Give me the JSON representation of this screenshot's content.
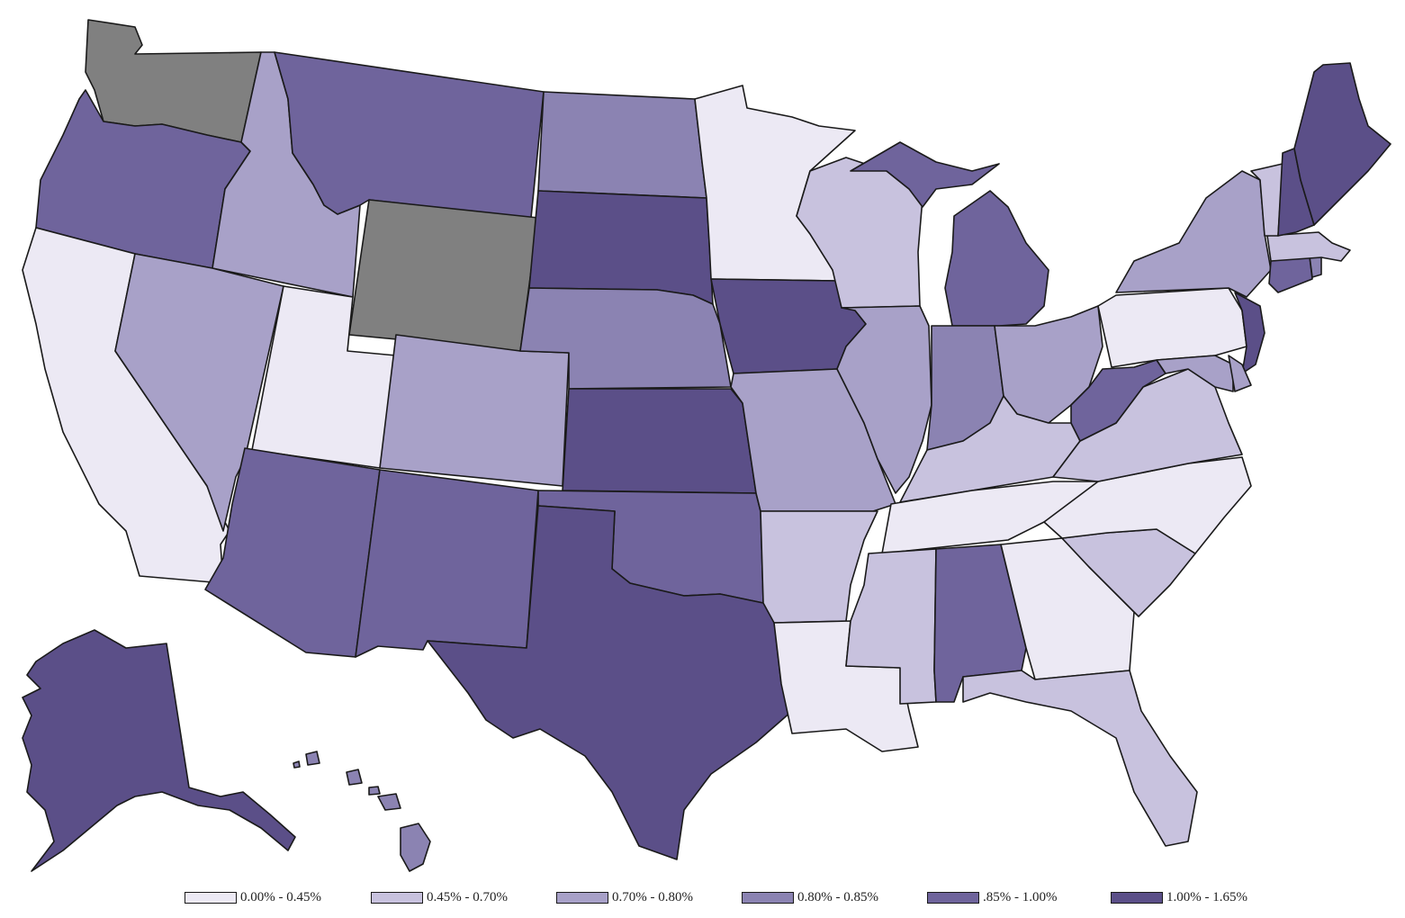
{
  "colors": {
    "c0": "#ece9f4",
    "c1": "#c8c2de",
    "c2": "#a8a1c8",
    "c3": "#8b83b2",
    "c4": "#6f649c",
    "c5": "#5b4f88",
    "nodata": "#808080"
  },
  "legend": [
    {
      "label": "0.00% - 0.45%",
      "color": "#ece9f4"
    },
    {
      "label": "0.45% - 0.70%",
      "color": "#c8c2de"
    },
    {
      "label": "0.70% - 0.80%",
      "color": "#a8a1c8"
    },
    {
      "label": "0.80% - 0.85%",
      "color": "#8b83b2"
    },
    {
      "label": ".85% - 1.00%",
      "color": "#6f649c"
    },
    {
      "label": "1.00% - 1.65%",
      "color": "#5b4f88"
    }
  ],
  "states": {
    "WA": "nodata",
    "OR": "c4",
    "CA": "c0",
    "ID": "c2",
    "NV": "c2",
    "UT": "c0",
    "MT": "c4",
    "WY": "nodata",
    "CO": "c2",
    "AZ": "c4",
    "NM": "c4",
    "ND": "c3",
    "SD": "c5",
    "NE": "c3",
    "KS": "c5",
    "OK": "c4",
    "TX": "c5",
    "MN": "c0",
    "IA": "c5",
    "MO": "c2",
    "AR": "c1",
    "LA": "c0",
    "WI": "c1",
    "IL": "c2",
    "MI": "c4",
    "IN": "c3",
    "OH": "c2",
    "KY": "c1",
    "TN": "c0",
    "MS": "c1",
    "AL": "c4",
    "GA": "c0",
    "FL": "c1",
    "SC": "c1",
    "NC": "c0",
    "VA": "c1",
    "WV": "c4",
    "PA": "c0",
    "NY": "c2",
    "NJ": "c5",
    "DE": "c2",
    "MD": "c2",
    "CT": "c4",
    "RI": "c3",
    "MA": "c1",
    "VT": "c1",
    "NH": "c5",
    "ME": "c5",
    "AK": "c5",
    "HI": "c3"
  }
}
